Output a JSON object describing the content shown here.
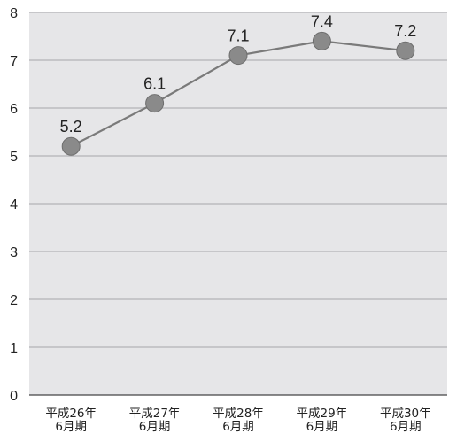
{
  "chart_data": {
    "type": "line",
    "title": "",
    "xlabel": "",
    "ylabel": "",
    "categories": [
      [
        "平成26年",
        "6月期"
      ],
      [
        "平成27年",
        "6月期"
      ],
      [
        "平成28年",
        "6月期"
      ],
      [
        "平成29年",
        "6月期"
      ],
      [
        "平成30年",
        "6月期"
      ]
    ],
    "series": [
      {
        "values": [
          5.2,
          6.1,
          7.1,
          7.4,
          7.2
        ]
      }
    ],
    "data_labels": [
      "5.2",
      "6.1",
      "7.1",
      "7.4",
      "7.2"
    ],
    "ylim": [
      0,
      8
    ],
    "yticks": [
      "0",
      "1",
      "2",
      "3",
      "4",
      "5",
      "6",
      "7",
      "8"
    ],
    "grid": true,
    "legend": "none",
    "colors": {
      "plot_background": "#e6e6e8",
      "gridline": "#b4b4b6",
      "axis": "#444444",
      "line": "#7a7a7a",
      "marker": "#8a8a8a",
      "marker_stroke": "#6e6e6e"
    }
  }
}
